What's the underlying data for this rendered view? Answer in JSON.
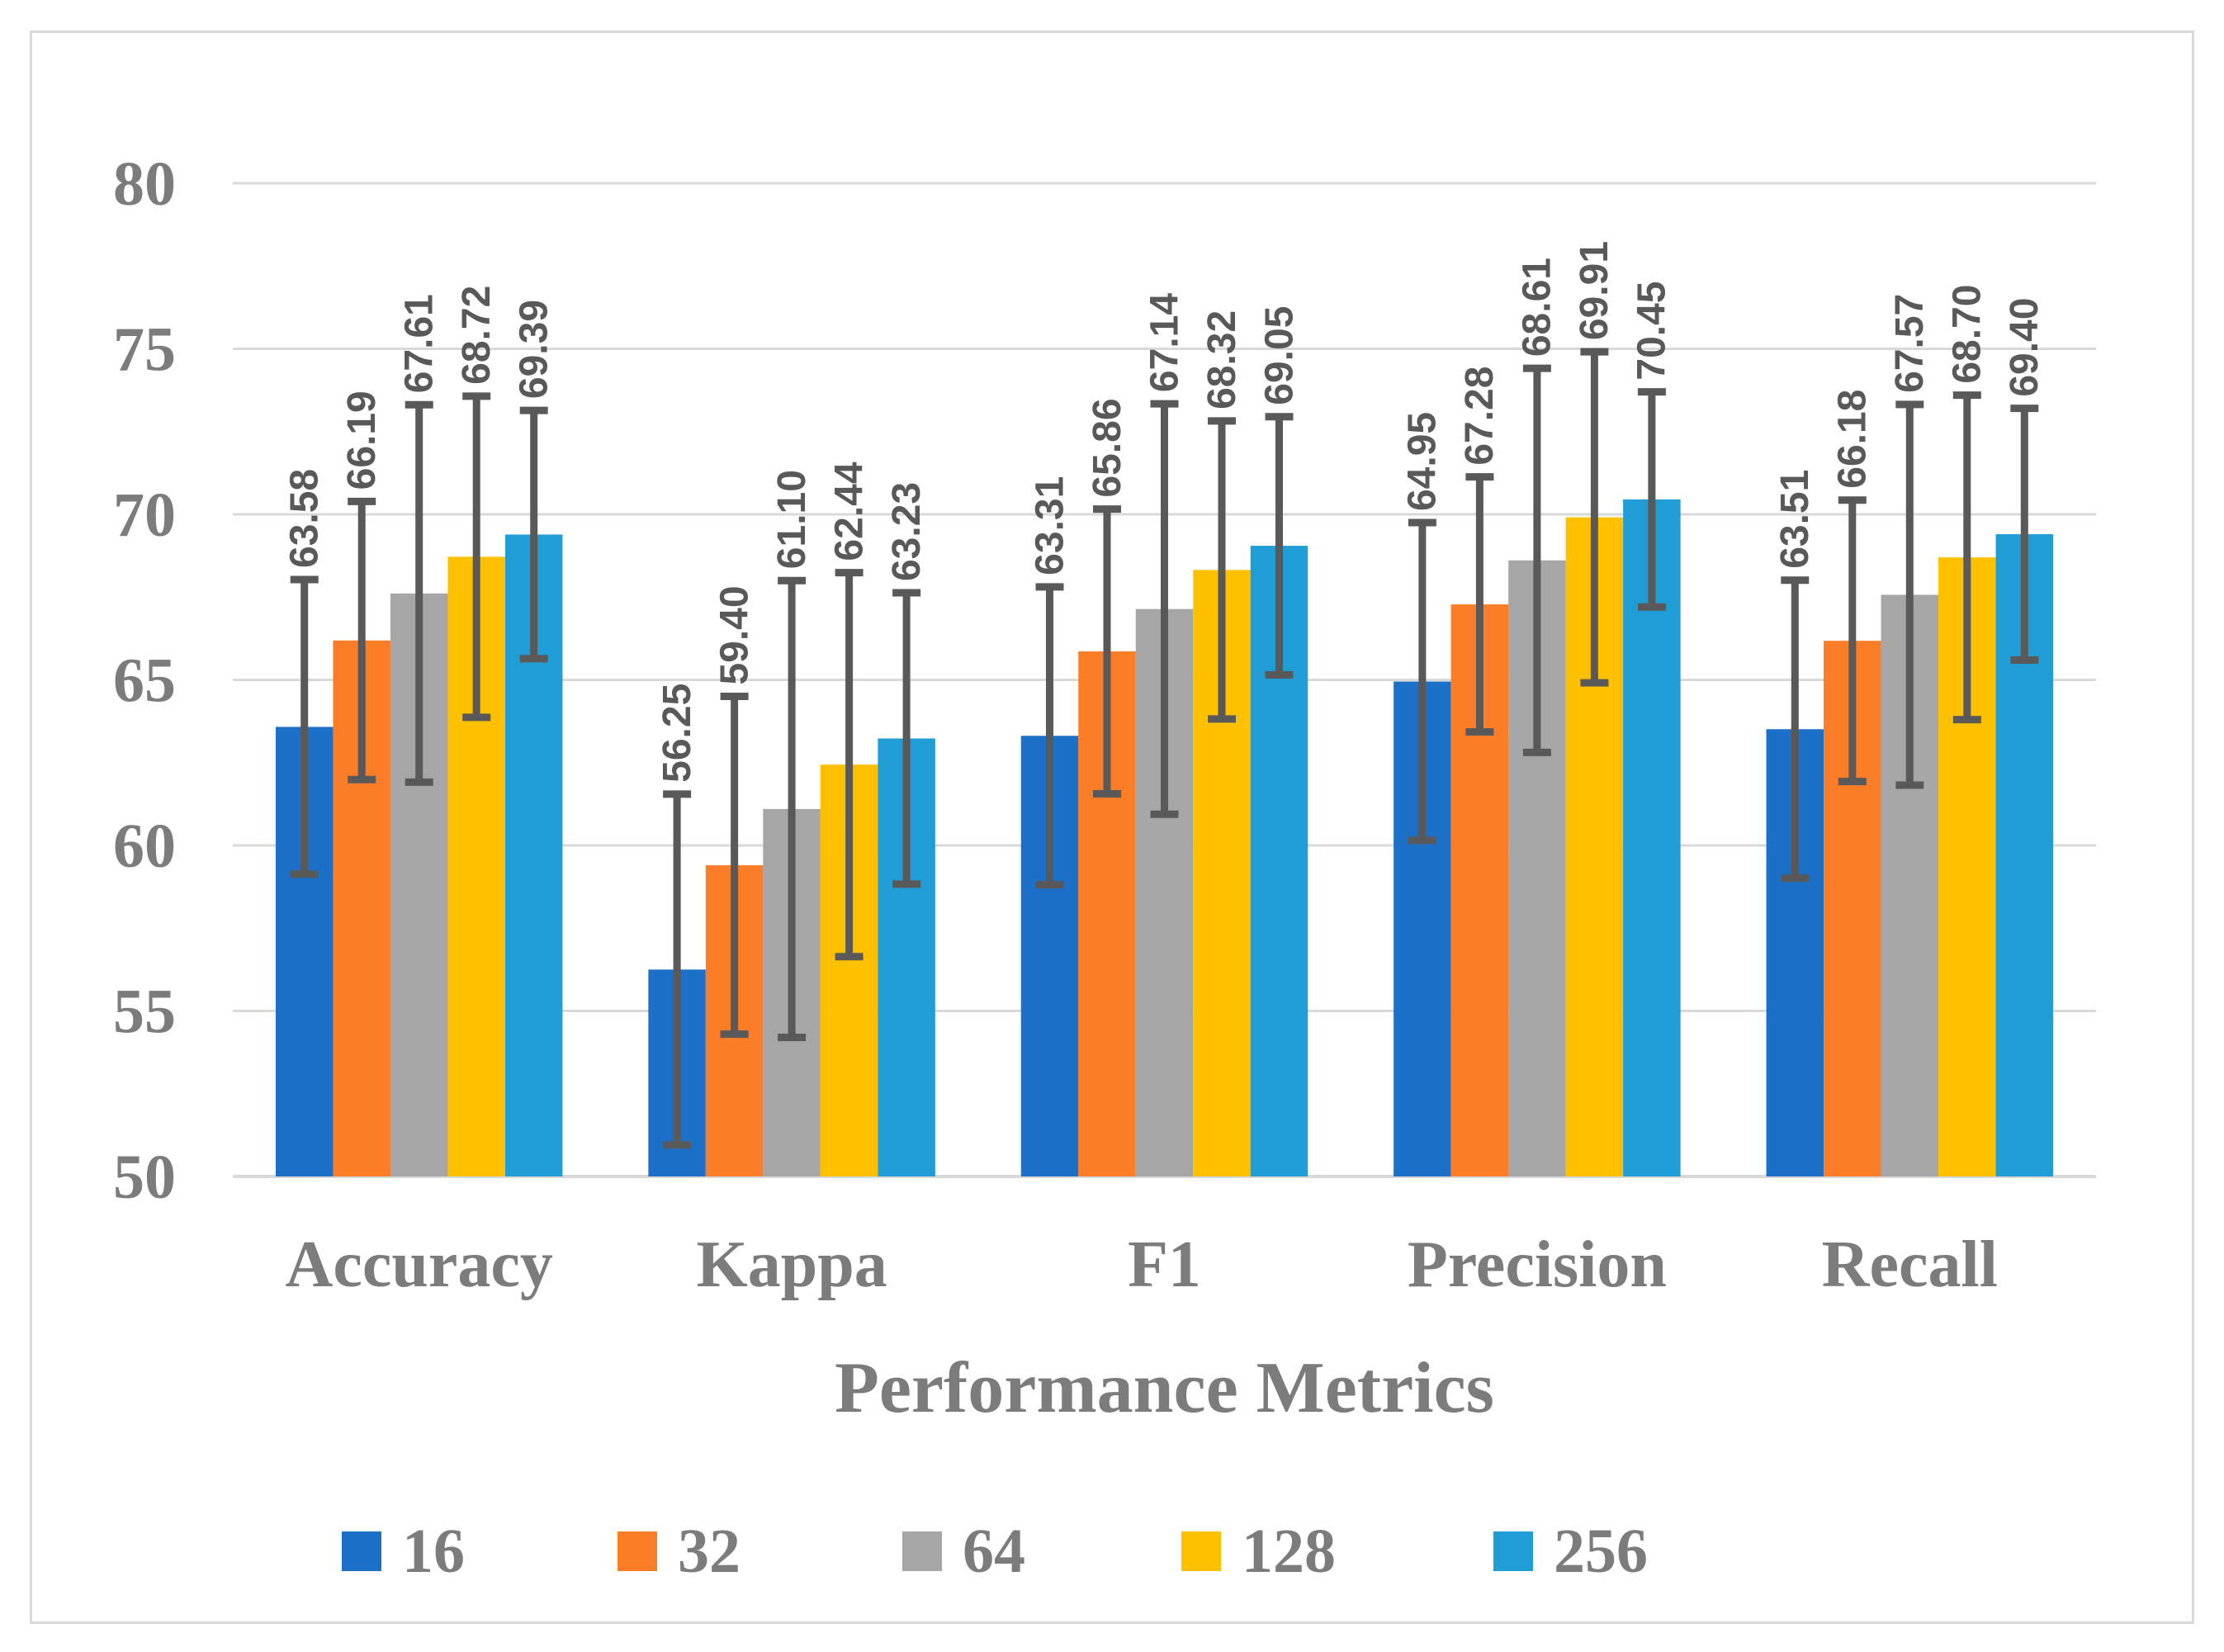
{
  "figure": {
    "background_color": "#FFFFFF",
    "border_color": "#D9D9D9"
  },
  "chart_data": {
    "type": "bar",
    "title": "",
    "xlabel": "Performance Metrics",
    "ylabel": "",
    "ylim": [
      50,
      80
    ],
    "yticks": [
      50,
      55,
      60,
      65,
      70,
      75,
      80
    ],
    "grid": true,
    "legend_position": "bottom",
    "value_label_style": "rotated 90deg, two decimals, above error bar",
    "categories": [
      "Accuracy",
      "Kappa",
      "F1",
      "Precision",
      "Recall"
    ],
    "series": [
      {
        "name": "16",
        "color": "#1C70C8",
        "values": [
          63.58,
          56.25,
          63.31,
          64.95,
          63.51
        ],
        "errors": [
          4.45,
          5.3,
          4.5,
          4.8,
          4.5
        ]
      },
      {
        "name": "32",
        "color": "#FB7D28",
        "values": [
          66.19,
          59.4,
          65.86,
          67.28,
          66.18
        ],
        "errors": [
          4.2,
          5.1,
          4.3,
          3.85,
          4.25
        ]
      },
      {
        "name": "64",
        "color": "#A6A6A6",
        "values": [
          67.61,
          61.1,
          67.14,
          68.61,
          67.57
        ],
        "errors": [
          5.7,
          6.9,
          6.2,
          5.8,
          5.75
        ]
      },
      {
        "name": "128",
        "color": "#FFC000",
        "values": [
          68.72,
          62.44,
          68.32,
          69.91,
          68.7
        ],
        "errors": [
          4.85,
          5.8,
          4.5,
          5.0,
          4.9
        ]
      },
      {
        "name": "256",
        "color": "#219DD6",
        "values": [
          69.39,
          63.23,
          69.05,
          70.45,
          69.4
        ],
        "errors": [
          3.75,
          4.4,
          3.9,
          3.25,
          3.8
        ]
      }
    ],
    "colors": {
      "gridline": "#D9D9D9",
      "axis_line": "#D9D9D9",
      "error_bar": "#595959",
      "tick_label": "#7C7C7C",
      "category_label": "#7C7C7C",
      "axis_title": "#7C7C7C",
      "legend_label": "#7C7C7C",
      "value_label": "#595959"
    }
  }
}
